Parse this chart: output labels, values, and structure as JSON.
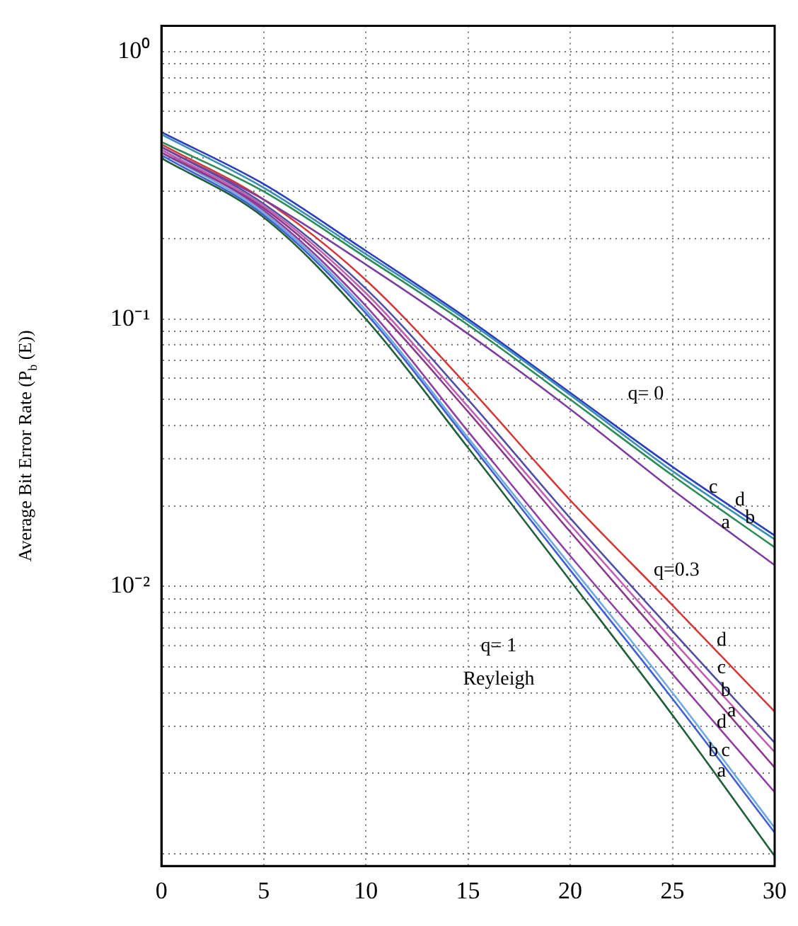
{
  "chart_data": {
    "type": "line",
    "ylabel": "Average Bit Error Rate (P$_{b}$ (E))",
    "log": "y",
    "grid": true,
    "legend": false,
    "x": [
      0,
      5,
      10,
      15,
      20,
      25,
      30
    ],
    "xlim": [
      0,
      30
    ],
    "xticks": [
      0,
      5,
      10,
      15,
      20,
      25,
      30
    ],
    "ylim": [
      0.0009,
      1.25
    ],
    "yticks": [
      {
        "value": 0.001,
        "label": null
      },
      {
        "value": 0.002,
        "label": null
      },
      {
        "value": 0.003,
        "label": null
      },
      {
        "value": 0.004,
        "label": null
      },
      {
        "value": 0.005,
        "label": null
      },
      {
        "value": 0.006,
        "label": null
      },
      {
        "value": 0.007,
        "label": null
      },
      {
        "value": 0.008,
        "label": null
      },
      {
        "value": 0.009,
        "label": null
      },
      {
        "value": 0.01,
        "label": "10⁻²"
      },
      {
        "value": 0.02,
        "label": null
      },
      {
        "value": 0.03,
        "label": null
      },
      {
        "value": 0.04,
        "label": null
      },
      {
        "value": 0.05,
        "label": null
      },
      {
        "value": 0.06,
        "label": null
      },
      {
        "value": 0.07,
        "label": null
      },
      {
        "value": 0.08,
        "label": null
      },
      {
        "value": 0.09,
        "label": null
      },
      {
        "value": 0.1,
        "label": "10⁻¹"
      },
      {
        "value": 0.2,
        "label": null
      },
      {
        "value": 0.3,
        "label": null
      },
      {
        "value": 0.4,
        "label": null
      },
      {
        "value": 0.5,
        "label": null
      },
      {
        "value": 0.6,
        "label": null
      },
      {
        "value": 0.7,
        "label": null
      },
      {
        "value": 0.8,
        "label": null
      },
      {
        "value": 0.9,
        "label": null
      },
      {
        "value": 1,
        "label": "10⁰"
      }
    ],
    "series": [
      {
        "color": "#7b3f9e",
        "values": [
          0.44,
          0.28,
          0.16,
          0.088,
          0.046,
          0.023,
          0.012
        ]
      },
      {
        "color": "#2e8b57",
        "values": [
          0.46,
          0.3,
          0.17,
          0.095,
          0.05,
          0.026,
          0.014
        ]
      },
      {
        "color": "#3a8fb0",
        "values": [
          0.49,
          0.31,
          0.175,
          0.098,
          0.052,
          0.027,
          0.015
        ]
      },
      {
        "color": "#2a3fbf",
        "values": [
          0.5,
          0.32,
          0.18,
          0.1,
          0.053,
          0.028,
          0.0155
        ]
      },
      {
        "color": "#8a3a8a",
        "values": [
          0.42,
          0.26,
          0.12,
          0.045,
          0.016,
          0.0058,
          0.0021
        ]
      },
      {
        "color": "#c060b0",
        "values": [
          0.43,
          0.265,
          0.125,
          0.047,
          0.017,
          0.0063,
          0.0024
        ]
      },
      {
        "color": "#5050a0",
        "values": [
          0.44,
          0.27,
          0.13,
          0.05,
          0.018,
          0.0068,
          0.0026
        ]
      },
      {
        "color": "#d03a3a",
        "values": [
          0.45,
          0.28,
          0.14,
          0.056,
          0.021,
          0.0085,
          0.0034
        ]
      },
      {
        "color": "#1f5f3a",
        "values": [
          0.4,
          0.24,
          0.1,
          0.033,
          0.0105,
          0.0033,
          0.00098
        ]
      },
      {
        "color": "#4060d0",
        "values": [
          0.41,
          0.245,
          0.105,
          0.035,
          0.0115,
          0.0038,
          0.0012
        ]
      },
      {
        "color": "#70a8e0",
        "values": [
          0.42,
          0.25,
          0.108,
          0.036,
          0.012,
          0.004,
          0.00125
        ]
      },
      {
        "color": "#9040a0",
        "values": [
          0.43,
          0.255,
          0.112,
          0.038,
          0.013,
          0.0047,
          0.0017
        ]
      }
    ],
    "annotations": [
      "q= 0",
      {
        "text": "c",
        "x": 27,
        "y": 0.0213
      },
      {
        "text": "d",
        "x": 28.3,
        "y": 0.019
      },
      {
        "text": "b",
        "x": 28.8,
        "y": 0.0163
      },
      {
        "text": "a",
        "x": 27.6,
        "y": 0.0157
      },
      "q=0.3",
      {
        "text": "d",
        "x": 27.4,
        "y": 0.0057
      },
      {
        "text": "c",
        "x": 27.4,
        "y": 0.0045
      },
      {
        "text": "b",
        "x": 27.6,
        "y": 0.0037
      },
      {
        "text": "a",
        "x": 27.9,
        "y": 0.0031
      },
      {
        "text": "d",
        "x": 27.4,
        "y": 0.0028
      },
      {
        "text": "b",
        "x": 27.0,
        "y": 0.0022
      },
      {
        "text": "c",
        "x": 27.6,
        "y": 0.0022
      },
      {
        "text": "a",
        "x": 27.4,
        "y": 0.00184
      },
      "q= 1",
      "Reyleigh"
    ]
  }
}
